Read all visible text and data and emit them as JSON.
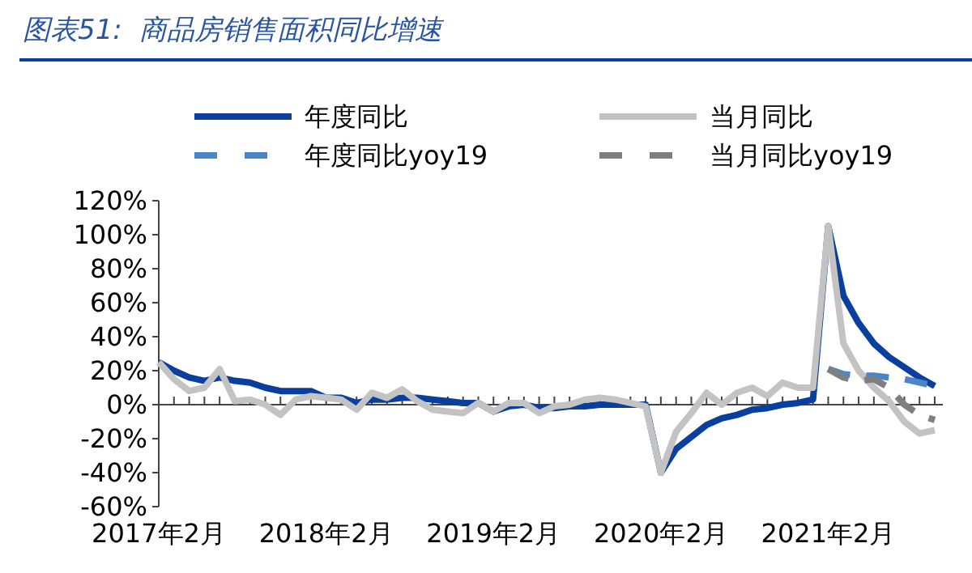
{
  "chart_data": {
    "type": "line",
    "title": "图表51:  商品房销售面积同比增速",
    "categories": [
      "2017年2月",
      null,
      null,
      null,
      null,
      null,
      null,
      null,
      null,
      null,
      null,
      "2018年2月",
      null,
      null,
      null,
      null,
      null,
      null,
      null,
      null,
      null,
      null,
      "2019年2月",
      null,
      null,
      null,
      null,
      null,
      null,
      null,
      null,
      null,
      null,
      "2020年2月",
      null,
      null,
      null,
      null,
      null,
      null,
      null,
      null,
      null,
      null,
      "2021年2月",
      null,
      null,
      null,
      null,
      null,
      null,
      null
    ],
    "series": [
      {
        "name": "年度同比",
        "color": "#0a3f9e",
        "line_style": "solid",
        "values": [
          25,
          20,
          16,
          14,
          16,
          14,
          13,
          10,
          8,
          8,
          8,
          4,
          4,
          1,
          3,
          3,
          4,
          4,
          3,
          2,
          1,
          1,
          -4,
          -1,
          0,
          -2,
          -2,
          -1,
          -1,
          0,
          0,
          0,
          0,
          -40,
          -26,
          -19,
          -12,
          -8,
          -6,
          -3,
          -2,
          0,
          1,
          3,
          105,
          64,
          48,
          36,
          28,
          22,
          16,
          11
        ]
      },
      {
        "name": "当月同比",
        "color": "#c3c3c3",
        "line_style": "solid",
        "values": [
          25,
          15,
          8,
          10,
          21,
          2,
          3,
          0,
          -6,
          3,
          5,
          4,
          3,
          -3,
          7,
          4,
          9,
          2,
          -3,
          -4,
          -5,
          1,
          -4,
          1,
          1,
          -5,
          -1,
          0,
          3,
          4,
          3,
          1,
          -1,
          -40,
          -16,
          -5,
          7,
          0,
          7,
          10,
          5,
          13,
          10,
          10,
          105,
          36,
          20,
          10,
          2,
          -10,
          -17,
          -15
        ]
      },
      {
        "name": "年度同比yoy19",
        "color": "#4a86c8",
        "line_style": "dashed",
        "values": [
          null,
          null,
          null,
          null,
          null,
          null,
          null,
          null,
          null,
          null,
          null,
          null,
          null,
          null,
          null,
          null,
          null,
          null,
          null,
          null,
          null,
          null,
          null,
          null,
          null,
          null,
          null,
          null,
          null,
          null,
          null,
          null,
          null,
          null,
          null,
          null,
          null,
          null,
          null,
          null,
          null,
          null,
          null,
          null,
          21,
          18,
          17,
          17,
          16,
          15,
          13,
          11
        ]
      },
      {
        "name": "当月同比yoy19",
        "color": "#7f7f7f",
        "line_style": "dashed",
        "values": [
          null,
          null,
          null,
          null,
          null,
          null,
          null,
          null,
          null,
          null,
          null,
          null,
          null,
          null,
          null,
          null,
          null,
          null,
          null,
          null,
          null,
          null,
          null,
          null,
          null,
          null,
          null,
          null,
          null,
          null,
          null,
          null,
          null,
          null,
          null,
          null,
          null,
          null,
          null,
          null,
          null,
          null,
          null,
          null,
          21,
          16,
          14,
          15,
          10,
          0,
          -6,
          -9
        ]
      }
    ],
    "ylim": [
      -60,
      120
    ],
    "yticks": [
      {
        "value": -60,
        "label": "-60%"
      },
      {
        "value": -40,
        "label": "-40%"
      },
      {
        "value": -20,
        "label": "-20%"
      },
      {
        "value": 0,
        "label": "0%"
      },
      {
        "value": 20,
        "label": "20%"
      },
      {
        "value": 40,
        "label": "40%"
      },
      {
        "value": 60,
        "label": "60%"
      },
      {
        "value": 80,
        "label": "80%"
      },
      {
        "value": 100,
        "label": "100%"
      },
      {
        "value": 120,
        "label": "120%"
      }
    ],
    "legend": "top",
    "marker": "none"
  }
}
